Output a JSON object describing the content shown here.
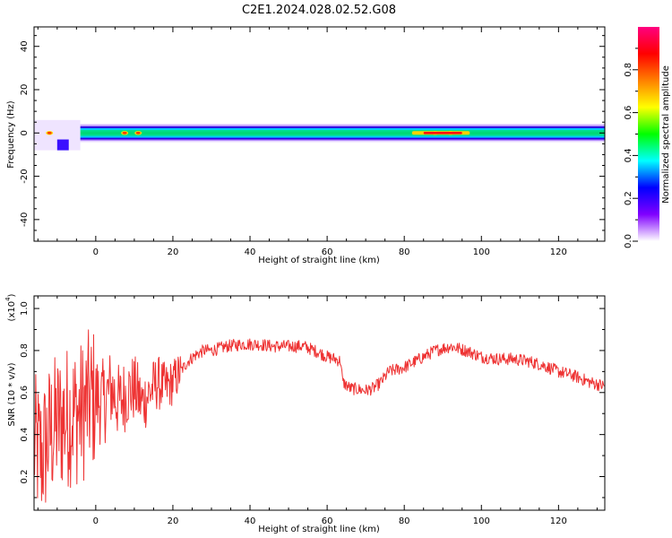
{
  "title": "C2E1.2024.028.02.52.G08",
  "chart_data": [
    {
      "type": "heatmap",
      "xlabel": "Height of straight line (km)",
      "ylabel": "Frequency (Hz)",
      "xlim": [
        -16,
        132
      ],
      "ylim": [
        -50,
        49
      ],
      "xticks": [
        0,
        20,
        40,
        60,
        80,
        100,
        120
      ],
      "yticks": [
        -40,
        -20,
        0,
        20,
        40
      ],
      "colorbar": {
        "label": "Normalized spectral amplitude",
        "range": [
          0,
          1
        ],
        "ticks": [
          0.0,
          0.2,
          0.4,
          0.6,
          0.8
        ],
        "tick_labels": [
          "0.0",
          "0.2",
          "0.4",
          "0.6",
          "0.8"
        ],
        "colors": [
          "#ffffff",
          "#8000ff",
          "#0000ff",
          "#00ffff",
          "#00ff00",
          "#ffff00",
          "#ff8000",
          "#ff0000",
          "#ff0080"
        ]
      },
      "band": {
        "center_hz": 0,
        "half_width_hz": 3
      },
      "bright_spots": [
        {
          "x": -12,
          "amplitude": 0.9
        },
        {
          "x": 7.5,
          "amplitude": 0.85
        },
        {
          "x": 11,
          "amplitude": 0.85
        },
        {
          "x": 88,
          "amplitude": 0.95
        },
        {
          "x": 92,
          "amplitude": 0.95
        }
      ],
      "grid": false
    },
    {
      "type": "line",
      "xlabel": "Height of straight line (km)",
      "ylabel": "SNR (10 * v/v)",
      "y_multiplier": "(x10",
      "y_multiplier_exp": "4",
      "y_multiplier_close": ")",
      "xlim": [
        -16,
        132
      ],
      "ylim": [
        0.04,
        1.06
      ],
      "xticks": [
        0,
        20,
        40,
        60,
        80,
        100,
        120
      ],
      "yticks": [
        0.2,
        0.4,
        0.6,
        0.8,
        1.0
      ],
      "ytick_labels": [
        "0.2",
        "0.4",
        "0.6",
        "0.8",
        "1.0"
      ],
      "color": "#ee3333",
      "x": [
        -16,
        -14,
        -12,
        -10,
        -8,
        -6,
        -4,
        -2,
        0,
        2,
        4,
        6,
        8,
        10,
        12,
        14,
        16,
        18,
        20,
        22,
        24,
        26,
        28,
        30,
        34,
        38,
        42,
        46,
        50,
        54,
        58,
        60,
        62,
        63.5,
        64,
        66,
        70,
        72,
        74,
        76,
        80,
        84,
        88,
        92,
        96,
        100,
        104,
        108,
        112,
        116,
        120,
        124,
        128,
        132
      ],
      "y": [
        0.35,
        0.3,
        0.4,
        0.45,
        0.48,
        0.5,
        0.5,
        0.55,
        0.58,
        0.55,
        0.62,
        0.55,
        0.6,
        0.62,
        0.55,
        0.6,
        0.65,
        0.62,
        0.65,
        0.7,
        0.75,
        0.78,
        0.8,
        0.8,
        0.82,
        0.83,
        0.83,
        0.82,
        0.82,
        0.82,
        0.79,
        0.77,
        0.76,
        0.75,
        0.65,
        0.62,
        0.61,
        0.62,
        0.65,
        0.7,
        0.72,
        0.76,
        0.8,
        0.82,
        0.8,
        0.77,
        0.76,
        0.76,
        0.75,
        0.73,
        0.7,
        0.68,
        0.65,
        0.63
      ]
    }
  ]
}
